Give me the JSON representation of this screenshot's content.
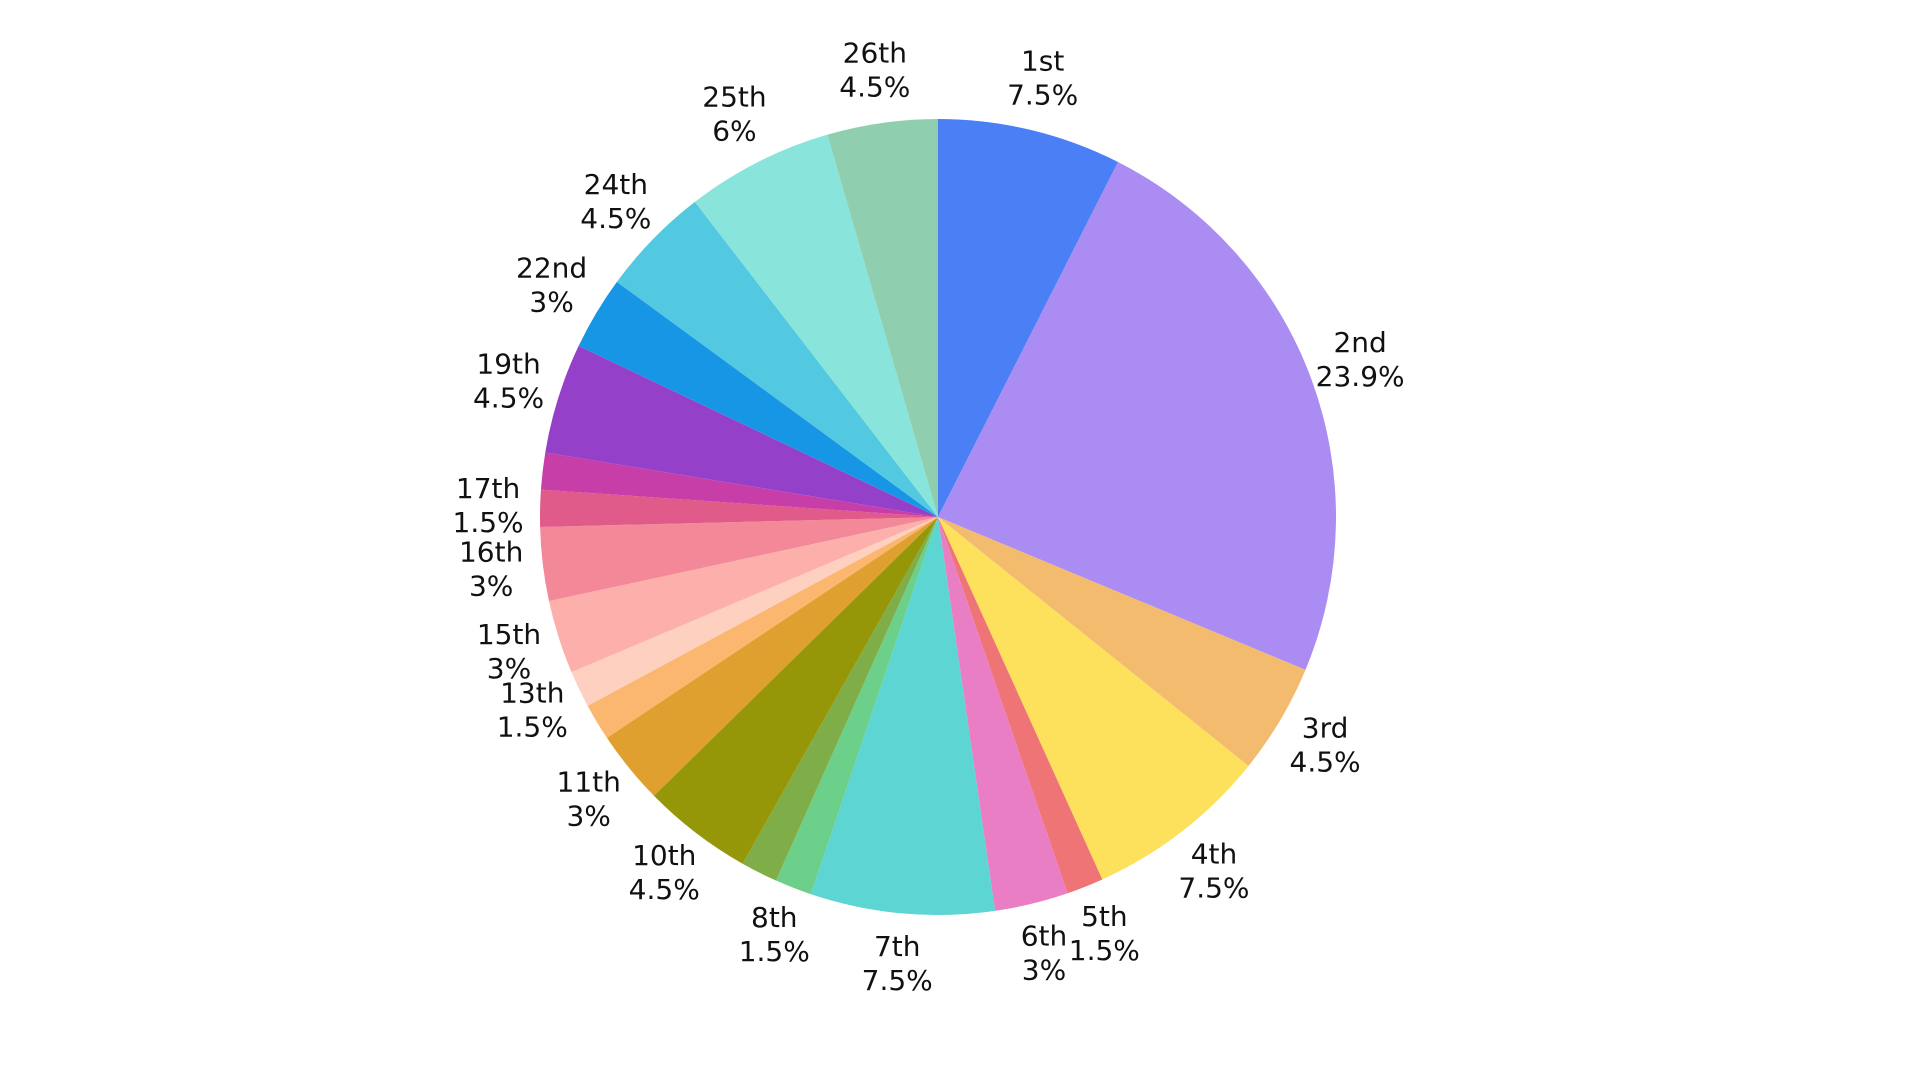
{
  "chart_data": {
    "type": "pie",
    "categories": [
      "1st",
      "2nd",
      "3rd",
      "4th",
      "5th",
      "6th",
      "7th",
      "8th",
      null,
      "10th",
      "11th",
      null,
      "13th",
      "15th",
      "16th",
      "17th",
      null,
      "19th",
      "22nd",
      "24th",
      "25th",
      "26th"
    ],
    "values": [
      7.5,
      23.9,
      4.5,
      7.5,
      1.5,
      3,
      7.5,
      1.5,
      1.5,
      4.5,
      3,
      1.5,
      1.5,
      3,
      3,
      1.5,
      1.5,
      4.5,
      3,
      4.5,
      6,
      4.5
    ],
    "value_labels": [
      "7.5%",
      "23.9%",
      "4.5%",
      "7.5%",
      "1.5%",
      "3%",
      "7.5%",
      "1.5%",
      null,
      "4.5%",
      "3%",
      null,
      "1.5%",
      "3%",
      "3%",
      "1.5%",
      null,
      "4.5%",
      "3%",
      "4.5%",
      "6%",
      "4.5%"
    ],
    "colors": [
      "#4a7ff5",
      "#ab8cf3",
      "#f2bb6e",
      "#fde05c",
      "#ee7475",
      "#ea7ec4",
      "#5cd5d3",
      "#6ccf8a",
      "#7fae48",
      "#969708",
      "#e0a030",
      "#fbb670",
      "#fdd0c0",
      "#fdb0ab",
      "#f28898",
      "#e05a8a",
      "#c83ea8",
      "#9440c8",
      "#1796e6",
      "#52c9e0",
      "#89e4dc",
      "#8fcfb0"
    ]
  }
}
